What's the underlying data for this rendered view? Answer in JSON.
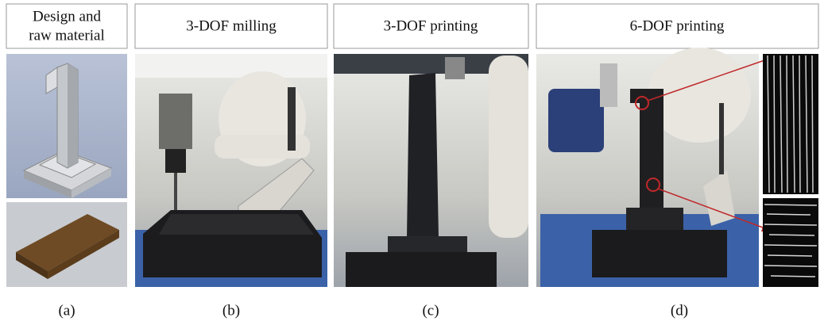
{
  "header": {
    "panels": [
      {
        "title_lines": [
          "Design and",
          "raw material"
        ],
        "caption": "(a)"
      },
      {
        "title_lines": [
          "3-DOF milling"
        ],
        "caption": "(b)"
      },
      {
        "title_lines": [
          "3-DOF printing"
        ],
        "caption": "(c)"
      },
      {
        "title_lines": [
          "6-DOF printing"
        ],
        "caption": "(d)"
      }
    ]
  }
}
